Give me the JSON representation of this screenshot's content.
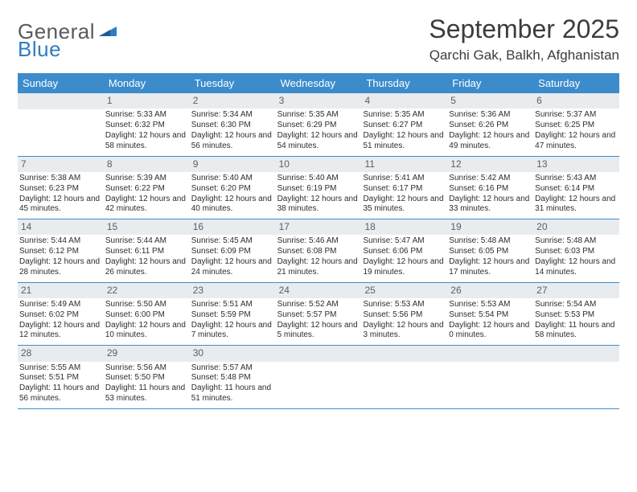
{
  "brand": {
    "text1": "General",
    "text2": "Blue"
  },
  "title": "September 2025",
  "location": "Qarchi Gak, Balkh, Afghanistan",
  "colors": {
    "primary": "#3c8ccc",
    "daynum_bg": "#e9ecef",
    "text": "#3c3c3c"
  },
  "weekdays": [
    "Sunday",
    "Monday",
    "Tuesday",
    "Wednesday",
    "Thursday",
    "Friday",
    "Saturday"
  ],
  "weeks": [
    [
      {
        "n": "",
        "sr": "",
        "ss": "",
        "dl": ""
      },
      {
        "n": "1",
        "sr": "Sunrise: 5:33 AM",
        "ss": "Sunset: 6:32 PM",
        "dl": "Daylight: 12 hours and 58 minutes."
      },
      {
        "n": "2",
        "sr": "Sunrise: 5:34 AM",
        "ss": "Sunset: 6:30 PM",
        "dl": "Daylight: 12 hours and 56 minutes."
      },
      {
        "n": "3",
        "sr": "Sunrise: 5:35 AM",
        "ss": "Sunset: 6:29 PM",
        "dl": "Daylight: 12 hours and 54 minutes."
      },
      {
        "n": "4",
        "sr": "Sunrise: 5:35 AM",
        "ss": "Sunset: 6:27 PM",
        "dl": "Daylight: 12 hours and 51 minutes."
      },
      {
        "n": "5",
        "sr": "Sunrise: 5:36 AM",
        "ss": "Sunset: 6:26 PM",
        "dl": "Daylight: 12 hours and 49 minutes."
      },
      {
        "n": "6",
        "sr": "Sunrise: 5:37 AM",
        "ss": "Sunset: 6:25 PM",
        "dl": "Daylight: 12 hours and 47 minutes."
      }
    ],
    [
      {
        "n": "7",
        "sr": "Sunrise: 5:38 AM",
        "ss": "Sunset: 6:23 PM",
        "dl": "Daylight: 12 hours and 45 minutes."
      },
      {
        "n": "8",
        "sr": "Sunrise: 5:39 AM",
        "ss": "Sunset: 6:22 PM",
        "dl": "Daylight: 12 hours and 42 minutes."
      },
      {
        "n": "9",
        "sr": "Sunrise: 5:40 AM",
        "ss": "Sunset: 6:20 PM",
        "dl": "Daylight: 12 hours and 40 minutes."
      },
      {
        "n": "10",
        "sr": "Sunrise: 5:40 AM",
        "ss": "Sunset: 6:19 PM",
        "dl": "Daylight: 12 hours and 38 minutes."
      },
      {
        "n": "11",
        "sr": "Sunrise: 5:41 AM",
        "ss": "Sunset: 6:17 PM",
        "dl": "Daylight: 12 hours and 35 minutes."
      },
      {
        "n": "12",
        "sr": "Sunrise: 5:42 AM",
        "ss": "Sunset: 6:16 PM",
        "dl": "Daylight: 12 hours and 33 minutes."
      },
      {
        "n": "13",
        "sr": "Sunrise: 5:43 AM",
        "ss": "Sunset: 6:14 PM",
        "dl": "Daylight: 12 hours and 31 minutes."
      }
    ],
    [
      {
        "n": "14",
        "sr": "Sunrise: 5:44 AM",
        "ss": "Sunset: 6:12 PM",
        "dl": "Daylight: 12 hours and 28 minutes."
      },
      {
        "n": "15",
        "sr": "Sunrise: 5:44 AM",
        "ss": "Sunset: 6:11 PM",
        "dl": "Daylight: 12 hours and 26 minutes."
      },
      {
        "n": "16",
        "sr": "Sunrise: 5:45 AM",
        "ss": "Sunset: 6:09 PM",
        "dl": "Daylight: 12 hours and 24 minutes."
      },
      {
        "n": "17",
        "sr": "Sunrise: 5:46 AM",
        "ss": "Sunset: 6:08 PM",
        "dl": "Daylight: 12 hours and 21 minutes."
      },
      {
        "n": "18",
        "sr": "Sunrise: 5:47 AM",
        "ss": "Sunset: 6:06 PM",
        "dl": "Daylight: 12 hours and 19 minutes."
      },
      {
        "n": "19",
        "sr": "Sunrise: 5:48 AM",
        "ss": "Sunset: 6:05 PM",
        "dl": "Daylight: 12 hours and 17 minutes."
      },
      {
        "n": "20",
        "sr": "Sunrise: 5:48 AM",
        "ss": "Sunset: 6:03 PM",
        "dl": "Daylight: 12 hours and 14 minutes."
      }
    ],
    [
      {
        "n": "21",
        "sr": "Sunrise: 5:49 AM",
        "ss": "Sunset: 6:02 PM",
        "dl": "Daylight: 12 hours and 12 minutes."
      },
      {
        "n": "22",
        "sr": "Sunrise: 5:50 AM",
        "ss": "Sunset: 6:00 PM",
        "dl": "Daylight: 12 hours and 10 minutes."
      },
      {
        "n": "23",
        "sr": "Sunrise: 5:51 AM",
        "ss": "Sunset: 5:59 PM",
        "dl": "Daylight: 12 hours and 7 minutes."
      },
      {
        "n": "24",
        "sr": "Sunrise: 5:52 AM",
        "ss": "Sunset: 5:57 PM",
        "dl": "Daylight: 12 hours and 5 minutes."
      },
      {
        "n": "25",
        "sr": "Sunrise: 5:53 AM",
        "ss": "Sunset: 5:56 PM",
        "dl": "Daylight: 12 hours and 3 minutes."
      },
      {
        "n": "26",
        "sr": "Sunrise: 5:53 AM",
        "ss": "Sunset: 5:54 PM",
        "dl": "Daylight: 12 hours and 0 minutes."
      },
      {
        "n": "27",
        "sr": "Sunrise: 5:54 AM",
        "ss": "Sunset: 5:53 PM",
        "dl": "Daylight: 11 hours and 58 minutes."
      }
    ],
    [
      {
        "n": "28",
        "sr": "Sunrise: 5:55 AM",
        "ss": "Sunset: 5:51 PM",
        "dl": "Daylight: 11 hours and 56 minutes."
      },
      {
        "n": "29",
        "sr": "Sunrise: 5:56 AM",
        "ss": "Sunset: 5:50 PM",
        "dl": "Daylight: 11 hours and 53 minutes."
      },
      {
        "n": "30",
        "sr": "Sunrise: 5:57 AM",
        "ss": "Sunset: 5:48 PM",
        "dl": "Daylight: 11 hours and 51 minutes."
      },
      {
        "n": "",
        "sr": "",
        "ss": "",
        "dl": ""
      },
      {
        "n": "",
        "sr": "",
        "ss": "",
        "dl": ""
      },
      {
        "n": "",
        "sr": "",
        "ss": "",
        "dl": ""
      },
      {
        "n": "",
        "sr": "",
        "ss": "",
        "dl": ""
      }
    ]
  ]
}
